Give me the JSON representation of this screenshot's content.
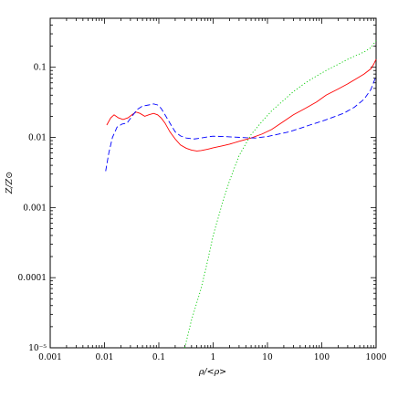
{
  "chart_data": {
    "type": "line",
    "xscale": "log",
    "yscale": "log",
    "xlim": [
      0.001,
      1000
    ],
    "ylim": [
      1e-05,
      0.5
    ],
    "grid": false,
    "xlabel": "ρ/<ρ>",
    "ylabel": "Z/Z⊙",
    "x_tick_labels": [
      {
        "value": 0.001,
        "label": "0.001"
      },
      {
        "value": 0.01,
        "label": "0.01"
      },
      {
        "value": 0.1,
        "label": "0.1"
      },
      {
        "value": 1,
        "label": "1"
      },
      {
        "value": 10,
        "label": "10"
      },
      {
        "value": 100,
        "label": "100"
      },
      {
        "value": 1000,
        "label": "1000"
      }
    ],
    "y_tick_labels": [
      {
        "value": 1e-05,
        "label": "10⁻⁵"
      },
      {
        "value": 0.0001,
        "label": "0.0001"
      },
      {
        "value": 0.001,
        "label": "0.001"
      },
      {
        "value": 0.01,
        "label": "0.01"
      },
      {
        "value": 0.1,
        "label": "0.1"
      }
    ],
    "series": [
      {
        "color": "#ff0000",
        "style": "solid",
        "points": [
          [
            0.011,
            0.015
          ],
          [
            0.013,
            0.019
          ],
          [
            0.015,
            0.021
          ],
          [
            0.018,
            0.019
          ],
          [
            0.022,
            0.018
          ],
          [
            0.027,
            0.019
          ],
          [
            0.032,
            0.021
          ],
          [
            0.038,
            0.023
          ],
          [
            0.045,
            0.022
          ],
          [
            0.055,
            0.02
          ],
          [
            0.065,
            0.021
          ],
          [
            0.08,
            0.022
          ],
          [
            0.095,
            0.021
          ],
          [
            0.11,
            0.019
          ],
          [
            0.13,
            0.016
          ],
          [
            0.16,
            0.012
          ],
          [
            0.2,
            0.0095
          ],
          [
            0.25,
            0.0078
          ],
          [
            0.32,
            0.007
          ],
          [
            0.4,
            0.0066
          ],
          [
            0.5,
            0.0064
          ],
          [
            0.6,
            0.0065
          ],
          [
            0.8,
            0.0068
          ],
          [
            1.0,
            0.0071
          ],
          [
            1.5,
            0.0076
          ],
          [
            2.0,
            0.008
          ],
          [
            3.0,
            0.0088
          ],
          [
            5.0,
            0.0098
          ],
          [
            8.0,
            0.0112
          ],
          [
            12,
            0.013
          ],
          [
            20,
            0.017
          ],
          [
            30,
            0.021
          ],
          [
            50,
            0.026
          ],
          [
            80,
            0.032
          ],
          [
            120,
            0.04
          ],
          [
            200,
            0.049
          ],
          [
            300,
            0.058
          ],
          [
            450,
            0.07
          ],
          [
            600,
            0.08
          ],
          [
            800,
            0.095
          ],
          [
            900,
            0.11
          ],
          [
            1000,
            0.13
          ]
        ]
      },
      {
        "color": "#0000ff",
        "style": "dashed",
        "points": [
          [
            0.0105,
            0.0033
          ],
          [
            0.012,
            0.006
          ],
          [
            0.014,
            0.01
          ],
          [
            0.017,
            0.014
          ],
          [
            0.021,
            0.0155
          ],
          [
            0.026,
            0.016
          ],
          [
            0.032,
            0.02
          ],
          [
            0.04,
            0.025
          ],
          [
            0.05,
            0.028
          ],
          [
            0.065,
            0.029
          ],
          [
            0.08,
            0.03
          ],
          [
            0.095,
            0.029
          ],
          [
            0.11,
            0.026
          ],
          [
            0.13,
            0.021
          ],
          [
            0.16,
            0.016
          ],
          [
            0.2,
            0.012
          ],
          [
            0.25,
            0.0105
          ],
          [
            0.32,
            0.0098
          ],
          [
            0.45,
            0.0095
          ],
          [
            0.6,
            0.0098
          ],
          [
            0.8,
            0.0102
          ],
          [
            1.0,
            0.0104
          ],
          [
            1.5,
            0.0103
          ],
          [
            2.5,
            0.0101
          ],
          [
            4.0,
            0.0099
          ],
          [
            6.0,
            0.0098
          ],
          [
            10,
            0.0103
          ],
          [
            15,
            0.011
          ],
          [
            25,
            0.012
          ],
          [
            40,
            0.0135
          ],
          [
            60,
            0.015
          ],
          [
            100,
            0.017
          ],
          [
            150,
            0.019
          ],
          [
            250,
            0.022
          ],
          [
            400,
            0.027
          ],
          [
            600,
            0.035
          ],
          [
            800,
            0.048
          ],
          [
            1000,
            0.075
          ]
        ]
      },
      {
        "color": "#00cc00",
        "style": "dotted",
        "points": [
          [
            0.3,
            1e-05
          ],
          [
            0.4,
            2.5e-05
          ],
          [
            0.6,
            7e-05
          ],
          [
            0.8,
            0.00018
          ],
          [
            1.0,
            0.0004
          ],
          [
            1.5,
            0.0012
          ],
          [
            2.0,
            0.0024
          ],
          [
            3.0,
            0.0055
          ],
          [
            5.0,
            0.011
          ],
          [
            8.0,
            0.017
          ],
          [
            12,
            0.024
          ],
          [
            20,
            0.034
          ],
          [
            30,
            0.045
          ],
          [
            50,
            0.06
          ],
          [
            80,
            0.075
          ],
          [
            120,
            0.09
          ],
          [
            200,
            0.11
          ],
          [
            300,
            0.13
          ],
          [
            450,
            0.15
          ],
          [
            600,
            0.165
          ],
          [
            800,
            0.19
          ],
          [
            1000,
            0.24
          ]
        ]
      }
    ]
  }
}
